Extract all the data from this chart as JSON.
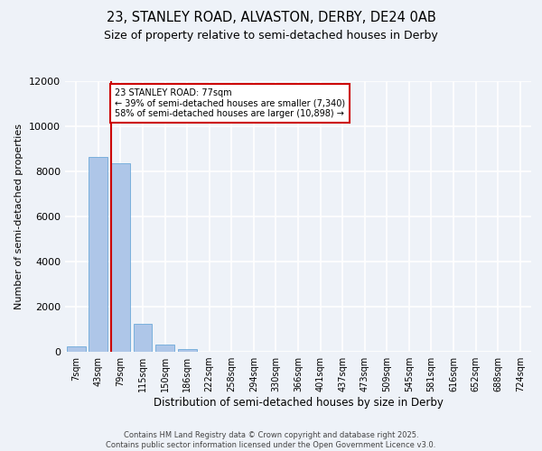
{
  "title_line1": "23, STANLEY ROAD, ALVASTON, DERBY, DE24 0AB",
  "title_line2": "Size of property relative to semi-detached houses in Derby",
  "xlabel": "Distribution of semi-detached houses by size in Derby",
  "ylabel": "Number of semi-detached properties",
  "footnote": "Contains HM Land Registry data © Crown copyright and database right 2025.\nContains public sector information licensed under the Open Government Licence v3.0.",
  "categories": [
    "7sqm",
    "43sqm",
    "79sqm",
    "115sqm",
    "150sqm",
    "186sqm",
    "222sqm",
    "258sqm",
    "294sqm",
    "330sqm",
    "366sqm",
    "401sqm",
    "437sqm",
    "473sqm",
    "509sqm",
    "545sqm",
    "581sqm",
    "616sqm",
    "652sqm",
    "688sqm",
    "724sqm"
  ],
  "values": [
    230,
    8650,
    8380,
    1230,
    340,
    110,
    0,
    0,
    0,
    0,
    0,
    0,
    0,
    0,
    0,
    0,
    0,
    0,
    0,
    0,
    0
  ],
  "bar_color": "#aec6e8",
  "bar_edge_color": "#5a9fd4",
  "ylim": [
    0,
    12000
  ],
  "yticks": [
    0,
    2000,
    4000,
    6000,
    8000,
    10000,
    12000
  ],
  "marker_bin_index": 2,
  "annotation_line1": "23 STANLEY ROAD: 77sqm",
  "annotation_line2": "← 39% of semi-detached houses are smaller (7,340)",
  "annotation_line3": "58% of semi-detached houses are larger (10,898) →",
  "vline_color": "#cc0000",
  "annotation_box_color": "#ffffff",
  "annotation_box_edge": "#cc0000",
  "background_color": "#eef2f8",
  "grid_color": "#ffffff"
}
